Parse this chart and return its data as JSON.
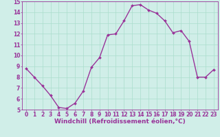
{
  "x": [
    0,
    1,
    2,
    3,
    4,
    5,
    6,
    7,
    8,
    9,
    10,
    11,
    12,
    13,
    14,
    15,
    16,
    17,
    18,
    19,
    20,
    21,
    22,
    23
  ],
  "y": [
    8.8,
    8.0,
    7.2,
    6.3,
    5.2,
    5.1,
    5.6,
    6.7,
    8.9,
    9.8,
    11.9,
    12.0,
    13.2,
    14.6,
    14.7,
    14.2,
    13.9,
    13.2,
    12.1,
    12.3,
    11.3,
    8.0,
    8.0,
    8.7
  ],
  "line_color": "#993399",
  "marker": "D",
  "marker_size": 2.0,
  "line_width": 1.0,
  "xlabel": "Windchill (Refroidissement éolien,°C)",
  "xlabel_fontsize": 6.5,
  "xlim": [
    -0.5,
    23.5
  ],
  "ylim": [
    5,
    15
  ],
  "yticks": [
    5,
    6,
    7,
    8,
    9,
    10,
    11,
    12,
    13,
    14,
    15
  ],
  "xticks": [
    0,
    1,
    2,
    3,
    4,
    5,
    6,
    7,
    8,
    9,
    10,
    11,
    12,
    13,
    14,
    15,
    16,
    17,
    18,
    19,
    20,
    21,
    22,
    23
  ],
  "grid_color": "#aaddcc",
  "bg_color": "#d0eee8",
  "tick_fontsize": 5.5,
  "tick_color": "#993399",
  "label_color": "#993399",
  "spine_color": "#993399"
}
